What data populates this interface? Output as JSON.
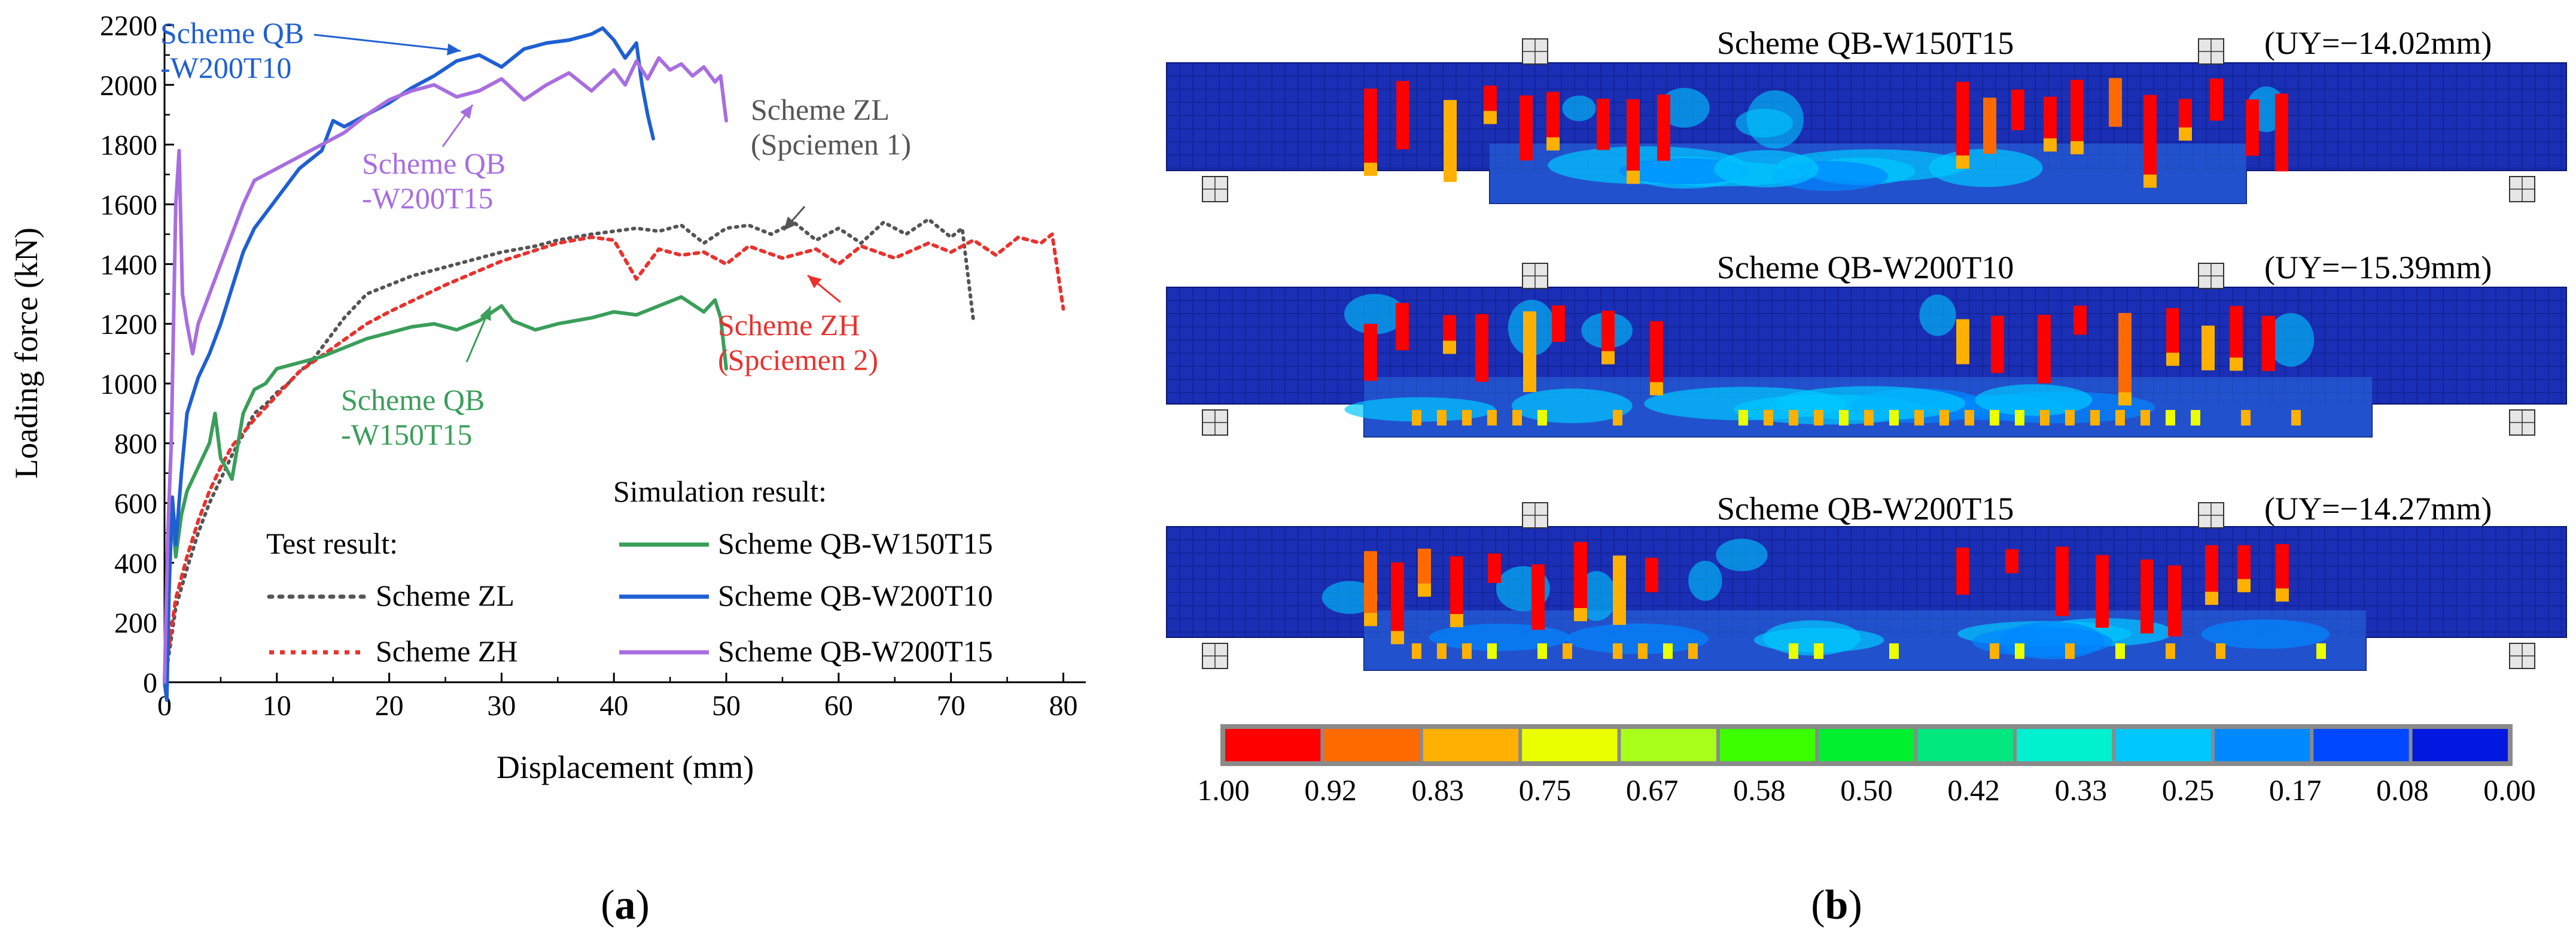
{
  "colors": {
    "test_zl": "#555555",
    "test_zh": "#e8322e",
    "qb_w150t15": "#3a9e5a",
    "qb_w200t10": "#1f5fd2",
    "qb_w200t15": "#a86ee0",
    "beam_base": "#1a2fb5",
    "axis": "#000000"
  },
  "panel_a": {
    "label_prefix": "(",
    "label_letter": "a",
    "label_suffix": ")",
    "legend": {
      "test_heading": "Test result:",
      "sim_heading": "Simulation result:",
      "test_items": [
        "Scheme ZL",
        "Scheme ZH"
      ],
      "sim_items": [
        "Scheme QB-W150T15",
        "Scheme QB-W200T10",
        "Scheme QB-W200T15"
      ]
    },
    "annotations": [
      {
        "lines": [
          "Scheme QB",
          "-W200T10"
        ],
        "color_key": "qb_w200t10"
      },
      {
        "lines": [
          "Scheme QB",
          "-W200T15"
        ],
        "color_key": "qb_w200t15"
      },
      {
        "lines": [
          "Scheme ZL",
          "(Spciemen 1)"
        ],
        "color_key": "test_zl"
      },
      {
        "lines": [
          "Scheme ZH",
          "(Spciemen 2)"
        ],
        "color_key": "test_zh"
      },
      {
        "lines": [
          "Scheme QB",
          "-W150T15"
        ],
        "color_key": "qb_w150t15"
      }
    ]
  },
  "panel_b": {
    "label_prefix": "(",
    "label_letter": "b",
    "label_suffix": ")",
    "contours": [
      {
        "title": "Scheme QB-W150T15",
        "uy": "(UY=−14.02mm)"
      },
      {
        "title": "Scheme QB-W200T10",
        "uy": "(UY=−15.39mm)"
      },
      {
        "title": "Scheme QB-W200T15",
        "uy": "(UY=−14.27mm)"
      }
    ],
    "colorbar": {
      "labels": [
        "1.00",
        "0.92",
        "0.83",
        "0.75",
        "0.67",
        "0.58",
        "0.50",
        "0.42",
        "0.33",
        "0.25",
        "0.17",
        "0.08",
        "0.00"
      ],
      "colors": [
        "#ff0000",
        "#ff6a00",
        "#ffb000",
        "#eaff00",
        "#a8ff1a",
        "#3cff00",
        "#00f030",
        "#00e87e",
        "#00f0d0",
        "#00c8ff",
        "#0088ff",
        "#0048ff",
        "#0018e0"
      ]
    }
  },
  "chart_data": {
    "type": "line",
    "title": "",
    "xlabel": "Displacement (mm)",
    "ylabel": "Loading force (kN)",
    "xlim": [
      0,
      82
    ],
    "ylim": [
      0,
      2200
    ],
    "xticks": [
      0,
      10,
      20,
      30,
      40,
      50,
      60,
      70,
      80
    ],
    "yticks": [
      0,
      200,
      400,
      600,
      800,
      1000,
      1200,
      1400,
      1600,
      1800,
      2000,
      2200
    ],
    "series": [
      {
        "name": "Scheme ZL",
        "group": "Test result",
        "color_key": "test_zl",
        "style": "dotted",
        "points": [
          [
            0,
            0
          ],
          [
            0.5,
            120
          ],
          [
            1,
            250
          ],
          [
            2,
            380
          ],
          [
            3,
            500
          ],
          [
            4,
            600
          ],
          [
            5,
            680
          ],
          [
            6,
            760
          ],
          [
            7,
            830
          ],
          [
            8,
            900
          ],
          [
            9,
            930
          ],
          [
            10,
            970
          ],
          [
            11,
            1000
          ],
          [
            12,
            1040
          ],
          [
            13,
            1070
          ],
          [
            14,
            1120
          ],
          [
            15,
            1170
          ],
          [
            16,
            1220
          ],
          [
            17,
            1260
          ],
          [
            18,
            1300
          ],
          [
            20,
            1330
          ],
          [
            22,
            1360
          ],
          [
            25,
            1390
          ],
          [
            28,
            1420
          ],
          [
            30,
            1440
          ],
          [
            33,
            1460
          ],
          [
            35,
            1480
          ],
          [
            38,
            1500
          ],
          [
            40,
            1510
          ],
          [
            42,
            1520
          ],
          [
            44,
            1510
          ],
          [
            46,
            1530
          ],
          [
            48,
            1470
          ],
          [
            50,
            1520
          ],
          [
            52,
            1530
          ],
          [
            54,
            1500
          ],
          [
            56,
            1540
          ],
          [
            58,
            1480
          ],
          [
            60,
            1520
          ],
          [
            62,
            1470
          ],
          [
            64,
            1540
          ],
          [
            66,
            1500
          ],
          [
            68,
            1550
          ],
          [
            70,
            1490
          ],
          [
            71,
            1520
          ],
          [
            72,
            1210
          ]
        ]
      },
      {
        "name": "Scheme ZH",
        "group": "Test result",
        "color_key": "test_zh",
        "style": "dotted",
        "points": [
          [
            0,
            0
          ],
          [
            0.5,
            150
          ],
          [
            1,
            280
          ],
          [
            2,
            420
          ],
          [
            3,
            540
          ],
          [
            4,
            640
          ],
          [
            5,
            720
          ],
          [
            6,
            790
          ],
          [
            8,
            880
          ],
          [
            10,
            960
          ],
          [
            12,
            1040
          ],
          [
            15,
            1120
          ],
          [
            18,
            1200
          ],
          [
            20,
            1240
          ],
          [
            25,
            1330
          ],
          [
            30,
            1410
          ],
          [
            35,
            1470
          ],
          [
            38,
            1490
          ],
          [
            40,
            1480
          ],
          [
            42,
            1350
          ],
          [
            44,
            1450
          ],
          [
            46,
            1430
          ],
          [
            48,
            1440
          ],
          [
            50,
            1400
          ],
          [
            52,
            1460
          ],
          [
            55,
            1420
          ],
          [
            58,
            1450
          ],
          [
            60,
            1400
          ],
          [
            62,
            1460
          ],
          [
            65,
            1420
          ],
          [
            68,
            1470
          ],
          [
            70,
            1440
          ],
          [
            72,
            1480
          ],
          [
            74,
            1430
          ],
          [
            76,
            1490
          ],
          [
            78,
            1470
          ],
          [
            79,
            1500
          ],
          [
            80,
            1250
          ]
        ]
      },
      {
        "name": "Scheme QB-W150T15",
        "group": "Simulation result",
        "color_key": "qb_w150t15",
        "style": "solid",
        "points": [
          [
            0,
            0
          ],
          [
            0.3,
            400
          ],
          [
            0.6,
            600
          ],
          [
            1,
            420
          ],
          [
            1.5,
            560
          ],
          [
            2,
            640
          ],
          [
            3,
            720
          ],
          [
            4,
            800
          ],
          [
            4.5,
            900
          ],
          [
            5,
            750
          ],
          [
            6,
            680
          ],
          [
            7,
            900
          ],
          [
            8,
            980
          ],
          [
            9,
            1000
          ],
          [
            10,
            1050
          ],
          [
            12,
            1070
          ],
          [
            14,
            1090
          ],
          [
            16,
            1120
          ],
          [
            18,
            1150
          ],
          [
            20,
            1170
          ],
          [
            22,
            1190
          ],
          [
            24,
            1200
          ],
          [
            26,
            1180
          ],
          [
            28,
            1210
          ],
          [
            30,
            1260
          ],
          [
            31,
            1210
          ],
          [
            33,
            1180
          ],
          [
            35,
            1200
          ],
          [
            38,
            1220
          ],
          [
            40,
            1240
          ],
          [
            42,
            1230
          ],
          [
            44,
            1260
          ],
          [
            46,
            1290
          ],
          [
            48,
            1240
          ],
          [
            49,
            1280
          ],
          [
            49.5,
            1220
          ],
          [
            50,
            1050
          ]
        ]
      },
      {
        "name": "Scheme QB-W200T10",
        "group": "Simulation result",
        "color_key": "qb_w200t10",
        "style": "solid",
        "points": [
          [
            0,
            0
          ],
          [
            0.2,
            -60
          ],
          [
            0.4,
            300
          ],
          [
            0.7,
            620
          ],
          [
            1,
            460
          ],
          [
            1.5,
            700
          ],
          [
            2,
            900
          ],
          [
            3,
            1020
          ],
          [
            4,
            1100
          ],
          [
            5,
            1200
          ],
          [
            6,
            1320
          ],
          [
            7,
            1440
          ],
          [
            8,
            1520
          ],
          [
            10,
            1620
          ],
          [
            12,
            1720
          ],
          [
            14,
            1780
          ],
          [
            15,
            1880
          ],
          [
            16,
            1860
          ],
          [
            18,
            1900
          ],
          [
            20,
            1940
          ],
          [
            22,
            1990
          ],
          [
            24,
            2030
          ],
          [
            26,
            2080
          ],
          [
            28,
            2100
          ],
          [
            30,
            2060
          ],
          [
            32,
            2120
          ],
          [
            34,
            2140
          ],
          [
            36,
            2150
          ],
          [
            38,
            2170
          ],
          [
            39,
            2190
          ],
          [
            40,
            2150
          ],
          [
            41,
            2090
          ],
          [
            42,
            2140
          ],
          [
            42.5,
            2000
          ],
          [
            43,
            1900
          ],
          [
            43.5,
            1820
          ]
        ]
      },
      {
        "name": "Scheme QB-W200T15",
        "group": "Simulation result",
        "color_key": "qb_w200t15",
        "style": "solid",
        "points": [
          [
            0,
            0
          ],
          [
            0.3,
            500
          ],
          [
            0.6,
            800
          ],
          [
            1,
            1600
          ],
          [
            1.3,
            1780
          ],
          [
            1.6,
            1300
          ],
          [
            2,
            1200
          ],
          [
            2.5,
            1100
          ],
          [
            3,
            1200
          ],
          [
            4,
            1300
          ],
          [
            5,
            1400
          ],
          [
            6,
            1500
          ],
          [
            7,
            1600
          ],
          [
            8,
            1680
          ],
          [
            10,
            1720
          ],
          [
            12,
            1760
          ],
          [
            14,
            1800
          ],
          [
            16,
            1840
          ],
          [
            18,
            1900
          ],
          [
            20,
            1950
          ],
          [
            22,
            1980
          ],
          [
            24,
            2000
          ],
          [
            26,
            1960
          ],
          [
            28,
            1980
          ],
          [
            30,
            2020
          ],
          [
            32,
            1950
          ],
          [
            34,
            2000
          ],
          [
            36,
            2040
          ],
          [
            38,
            1980
          ],
          [
            40,
            2050
          ],
          [
            41,
            2000
          ],
          [
            42,
            2080
          ],
          [
            43,
            2020
          ],
          [
            44,
            2090
          ],
          [
            45,
            2050
          ],
          [
            46,
            2070
          ],
          [
            47,
            2030
          ],
          [
            48,
            2060
          ],
          [
            49,
            2010
          ],
          [
            49.5,
            2030
          ],
          [
            50,
            1880
          ]
        ]
      }
    ]
  }
}
